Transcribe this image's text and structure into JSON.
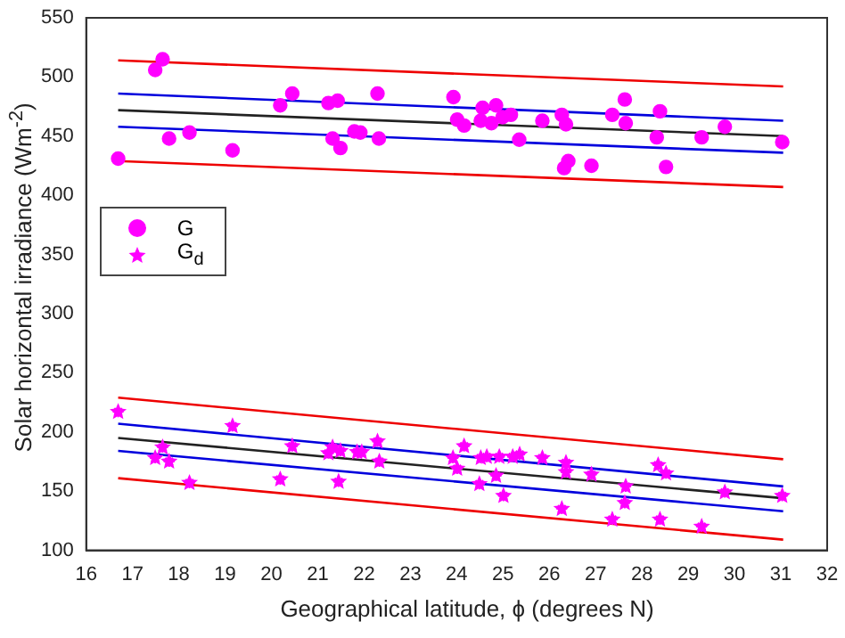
{
  "chart_data": {
    "type": "scatter",
    "xlabel": "Geographical latitude, ϕ (degrees N)",
    "ylabel": "Solar horizontal irradiance (Wm$^{-2}$)",
    "xlim": [
      16,
      32
    ],
    "xticks": [
      16,
      17,
      18,
      19,
      20,
      21,
      22,
      23,
      24,
      25,
      26,
      27,
      28,
      29,
      30,
      31,
      32
    ],
    "ylim": [
      100,
      550
    ],
    "yticks": [
      100,
      150,
      200,
      250,
      300,
      350,
      400,
      450,
      500,
      550
    ],
    "grid": false,
    "legend": "top left",
    "series": [
      {
        "name": "G",
        "marker": "circle",
        "color": "#ff00ff",
        "x": [
          16.69,
          17.49,
          17.65,
          17.79,
          18.23,
          19.16,
          20.19,
          20.45,
          21.23,
          21.43,
          21.32,
          21.49,
          21.79,
          21.92,
          22.29,
          22.32,
          23.93,
          24.01,
          24.16,
          24.52,
          24.56,
          24.75,
          24.85,
          24.99,
          25.17,
          25.35,
          25.85,
          26.27,
          26.36,
          26.32,
          26.41,
          26.91,
          27.36,
          27.63,
          27.65,
          28.32,
          28.39,
          28.52,
          29.29,
          29.79,
          31.03
        ],
        "values": [
          431,
          506,
          515,
          448,
          453,
          438,
          476,
          486,
          478,
          480,
          448,
          440,
          454,
          453,
          486,
          448,
          483,
          464,
          459,
          463,
          474,
          461,
          476,
          466,
          468,
          447,
          463,
          468,
          460,
          423,
          429,
          425,
          468,
          481,
          461,
          449,
          471,
          424,
          449,
          458,
          445
        ]
      },
      {
        "name": "G$_{d}$",
        "marker": "star",
        "color": "#ff00ff",
        "x": [
          16.69,
          17.49,
          17.65,
          17.79,
          18.23,
          19.16,
          20.19,
          20.45,
          21.23,
          21.32,
          21.49,
          21.45,
          21.85,
          21.95,
          22.29,
          22.33,
          23.92,
          24.01,
          24.16,
          24.49,
          24.52,
          24.65,
          24.92,
          24.85,
          25.01,
          25.21,
          25.36,
          25.85,
          26.36,
          26.36,
          26.27,
          26.91,
          27.36,
          27.65,
          27.63,
          28.35,
          28.52,
          28.39,
          29.29,
          29.79,
          31.03
        ],
        "values": [
          217,
          178,
          187,
          175,
          157,
          205,
          160,
          188,
          182,
          187,
          184,
          158,
          183,
          183,
          192,
          175,
          178,
          169,
          188,
          156,
          178,
          179,
          179,
          163,
          146,
          179,
          181,
          178,
          174,
          166,
          135,
          164,
          126,
          154,
          140,
          172,
          165,
          126,
          120,
          149,
          146
        ]
      },
      {
        "type": "line",
        "color": "#ee0000",
        "x": [
          16.69,
          31.05
        ],
        "values": [
          514,
          492
        ]
      },
      {
        "type": "line",
        "color": "#0000dd",
        "x": [
          16.69,
          31.05
        ],
        "values": [
          486,
          463
        ]
      },
      {
        "type": "line",
        "color": "#222222",
        "x": [
          16.69,
          31.05
        ],
        "values": [
          472,
          450
        ]
      },
      {
        "type": "line",
        "color": "#0000dd",
        "x": [
          16.69,
          31.05
        ],
        "values": [
          458,
          436
        ]
      },
      {
        "type": "line",
        "color": "#ee0000",
        "x": [
          16.69,
          31.05
        ],
        "values": [
          429,
          407
        ]
      },
      {
        "type": "line",
        "color": "#ee0000",
        "x": [
          16.69,
          31.05
        ],
        "values": [
          229,
          177
        ]
      },
      {
        "type": "line",
        "color": "#0000dd",
        "x": [
          16.69,
          31.05
        ],
        "values": [
          207,
          154
        ]
      },
      {
        "type": "line",
        "color": "#222222",
        "x": [
          16.69,
          31.05
        ],
        "values": [
          195,
          144
        ]
      },
      {
        "type": "line",
        "color": "#0000dd",
        "x": [
          16.69,
          31.05
        ],
        "values": [
          184,
          133
        ]
      },
      {
        "type": "line",
        "color": "#ee0000",
        "x": [
          16.69,
          31.05
        ],
        "values": [
          161,
          109
        ]
      }
    ]
  }
}
